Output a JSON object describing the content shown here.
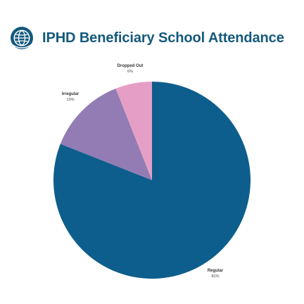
{
  "header": {
    "title": "IPHD Beneficiary School Attendance",
    "logo_icon": "globe-logo-icon"
  },
  "colors": {
    "title": "#14597c",
    "logo": "#14597c"
  },
  "chart_data": {
    "type": "pie",
    "title": "IPHD Beneficiary School Attendance",
    "slices": [
      {
        "label": "Regular",
        "value": 81,
        "display": "81%",
        "color": "#0d5e8c"
      },
      {
        "label": "Irregular",
        "value": 13,
        "display": "13%",
        "color": "#927cb3"
      },
      {
        "label": "Dropped Out",
        "value": 6,
        "display": "6%",
        "color": "#e59fc6"
      }
    ]
  }
}
